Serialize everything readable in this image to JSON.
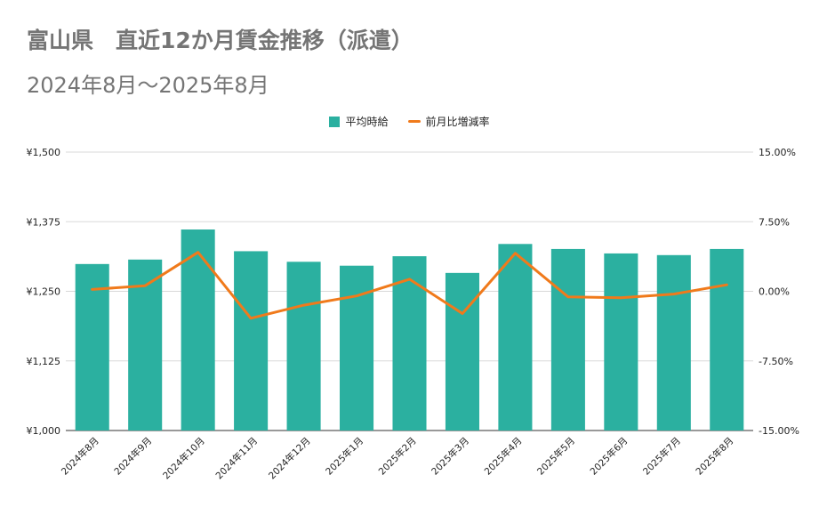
{
  "header": {
    "title": "富山県　直近12か月賃金推移（派遣）",
    "subtitle": "2024年8月～2025年8月"
  },
  "colors": {
    "bar": "#2bb0a0",
    "line": "#f07a1b",
    "grid": "#d9d9d9",
    "axis_text": "#222222"
  },
  "chart_data": {
    "type": "bar",
    "categories": [
      "2024年8月",
      "2024年9月",
      "2024年10月",
      "2024年11月",
      "2024年12月",
      "2025年1月",
      "2025年2月",
      "2025年3月",
      "2025年4月",
      "2025年5月",
      "2025年6月",
      "2025年7月",
      "2025年8月"
    ],
    "series": [
      {
        "name": "平均時給",
        "type": "bar",
        "axis": "left",
        "values": [
          1299,
          1307,
          1361,
          1322,
          1303,
          1296,
          1313,
          1283,
          1335,
          1326,
          1318,
          1315,
          1326
        ]
      },
      {
        "name": "前月比増減率",
        "type": "line",
        "axis": "right",
        "values": [
          0.2,
          0.6,
          4.2,
          -2.9,
          -1.5,
          -0.5,
          1.3,
          -2.4,
          4.1,
          -0.6,
          -0.7,
          -0.3,
          0.7
        ]
      }
    ],
    "left_axis": {
      "ylim": [
        1000,
        1500
      ],
      "tick_labels": [
        "¥1,000",
        "¥1,125",
        "¥1,250",
        "¥1,375",
        "¥1,500"
      ]
    },
    "right_axis": {
      "ylim": [
        -15,
        15
      ],
      "tick_labels": [
        "-15.00%",
        "-7.50%",
        "0.00%",
        "7.50%",
        "15.00%"
      ]
    },
    "legend_position": "top-center",
    "grid": true
  }
}
